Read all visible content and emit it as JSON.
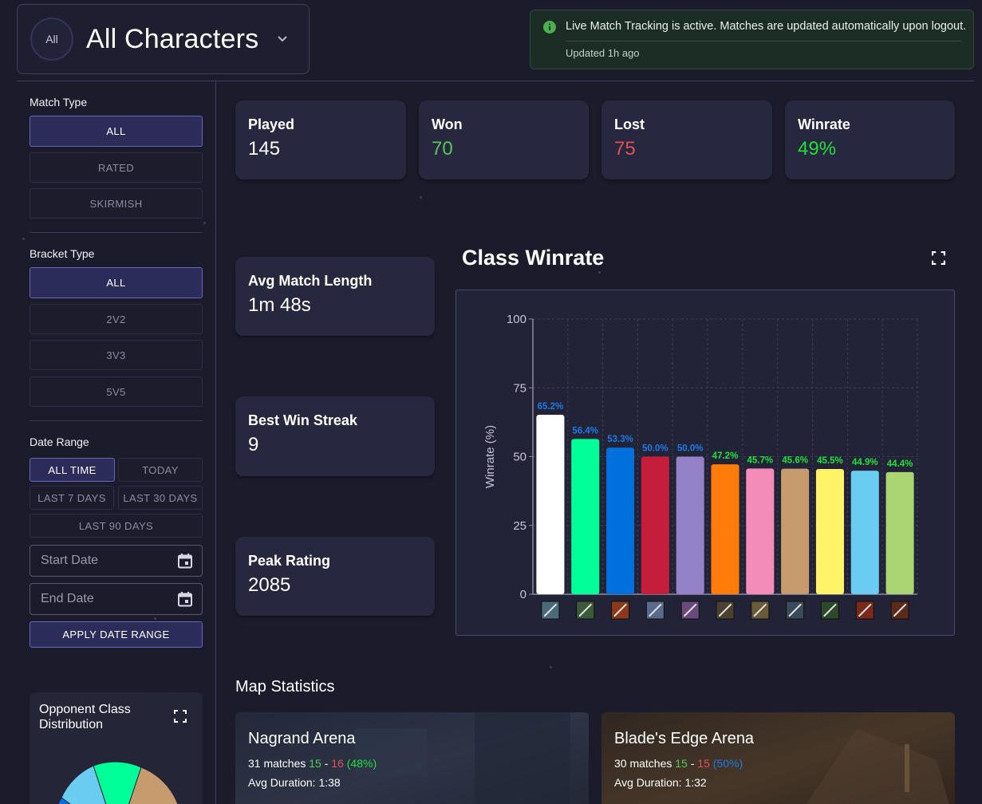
{
  "header": {
    "avatar_label": "All",
    "character_name": "All Characters"
  },
  "alert": {
    "message": "Live Match Tracking is active. Matches are updated automatically upon logout.",
    "updated": "Updated 1h ago"
  },
  "filters": {
    "match_type": {
      "label": "Match Type",
      "options": [
        "ALL",
        "RATED",
        "SKIRMISH"
      ],
      "selected": "ALL"
    },
    "bracket_type": {
      "label": "Bracket Type",
      "options": [
        "ALL",
        "2V2",
        "3V3",
        "5V5"
      ],
      "selected": "ALL"
    },
    "date_range": {
      "label": "Date Range",
      "options": [
        "ALL TIME",
        "TODAY",
        "LAST 7 DAYS",
        "LAST 30 DAYS",
        "LAST 90 DAYS"
      ],
      "selected": "ALL TIME",
      "start_placeholder": "Start Date",
      "end_placeholder": "End Date",
      "apply_label": "APPLY DATE RANGE"
    }
  },
  "stats": {
    "played": {
      "label": "Played",
      "value": "145"
    },
    "won": {
      "label": "Won",
      "value": "70"
    },
    "lost": {
      "label": "Lost",
      "value": "75"
    },
    "winrate": {
      "label": "Winrate",
      "value": "49%"
    },
    "avg_match_length": {
      "label": "Avg Match Length",
      "value": "1m 48s"
    },
    "best_win_streak": {
      "label": "Best Win Streak",
      "value": "9"
    },
    "peak_rating": {
      "label": "Peak Rating",
      "value": "2085"
    }
  },
  "colors": {
    "win": "#57c757",
    "loss": "#e05252",
    "bright_green": "#22e03a",
    "label_blue": "#1c7ae8",
    "accent": "#6466b8"
  },
  "chart_section": {
    "title": "Class Winrate",
    "expand_icon": "fullscreen-icon"
  },
  "chart_data": {
    "type": "bar",
    "title": "Class Winrate",
    "xlabel": "",
    "ylabel": "Winrate (%)",
    "ylim": [
      0,
      100
    ],
    "yticks": [
      0,
      25,
      50,
      75,
      100
    ],
    "grid": true,
    "categories": [
      "class-1",
      "class-2",
      "class-3",
      "class-4",
      "class-5",
      "class-6",
      "class-7",
      "class-8",
      "class-9",
      "class-10",
      "class-11"
    ],
    "values": [
      65.2,
      56.4,
      53.3,
      50.0,
      50.0,
      47.2,
      45.7,
      45.6,
      45.5,
      44.9,
      44.4
    ],
    "data_labels": [
      "65.2%",
      "56.4%",
      "53.3%",
      "50.0%",
      "50.0%",
      "47.2%",
      "45.7%",
      "45.6%",
      "45.5%",
      "44.9%",
      "44.4%"
    ],
    "bar_colors": [
      "#ffffff",
      "#00ff98",
      "#0070dd",
      "#c41e3a",
      "#9482c9",
      "#ff7c0a",
      "#f48cba",
      "#c69b6d",
      "#fff468",
      "#69ccf0",
      "#abd473"
    ],
    "label_colors": [
      "#1c7ae8",
      "#1c7ae8",
      "#1c7ae8",
      "#1c7ae8",
      "#1c7ae8",
      "#22e03a",
      "#22e03a",
      "#22e03a",
      "#22e03a",
      "#22e03a",
      "#22e03a"
    ],
    "icon_names": [
      "class-icon",
      "class-icon",
      "class-icon",
      "class-icon",
      "class-icon",
      "class-icon",
      "class-icon",
      "class-icon",
      "class-icon",
      "class-icon",
      "class-icon"
    ]
  },
  "opponent_chart": {
    "title": "Opponent Class Distribution",
    "expand_icon": "fullscreen-icon"
  },
  "maps": {
    "heading": "Map Statistics",
    "items": [
      {
        "name": "Nagrand Arena",
        "matches": "31 matches",
        "won": "15",
        "lost": "16",
        "pct": "(48%)",
        "pct_color": "#22e03a",
        "duration": "Avg Duration: 1:38"
      },
      {
        "name": "Blade's Edge Arena",
        "matches": "30 matches",
        "won": "15",
        "lost": "15",
        "pct": "(50%)",
        "pct_color": "#1c7ae8",
        "duration": "Avg Duration: 1:32"
      }
    ]
  }
}
